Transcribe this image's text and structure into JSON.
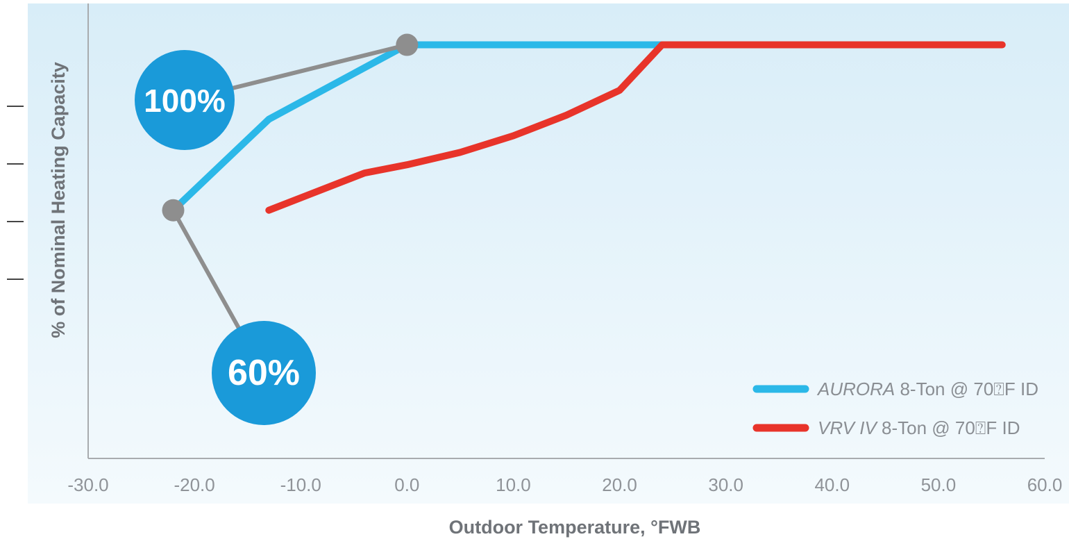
{
  "chart_data": {
    "type": "line",
    "xlabel": "Outdoor Temperature, °FWB",
    "ylabel": "% of Nominal Heating Capacity",
    "xlim": [
      -30,
      60
    ],
    "ylim": [
      0,
      110
    ],
    "x_ticks": [
      "-30.0",
      "-20.0",
      "-10.0",
      "0.0",
      "10.0",
      "20.0",
      "30.0",
      "40.0",
      "50.0",
      "60.0"
    ],
    "series": [
      {
        "name_italic": "AURORA",
        "name_rest": " 8-Ton @ 70⍰F ID",
        "color": "#2bb8e8",
        "x": [
          -22,
          -13,
          0,
          24
        ],
        "y": [
          60,
          82,
          100,
          100
        ]
      },
      {
        "name_italic": "VRV IV",
        "name_rest": " 8-Ton @ 70⍰F ID",
        "color": "#e8342a",
        "x": [
          -13,
          -9,
          -4,
          0,
          5,
          10,
          15,
          20,
          24,
          56
        ],
        "y": [
          60,
          64,
          69,
          71,
          74,
          78,
          83,
          89,
          100,
          100
        ]
      }
    ],
    "annotations": [
      {
        "text": "100%",
        "x": 0,
        "y": 100
      },
      {
        "text": "60%",
        "x": -22,
        "y": 60
      }
    ],
    "legend_position": "bottom-right",
    "grid": false,
    "colors": {
      "badge": "#1a9ad9",
      "connector": "#8e8e8e",
      "background_top": "#d8edf8"
    }
  }
}
